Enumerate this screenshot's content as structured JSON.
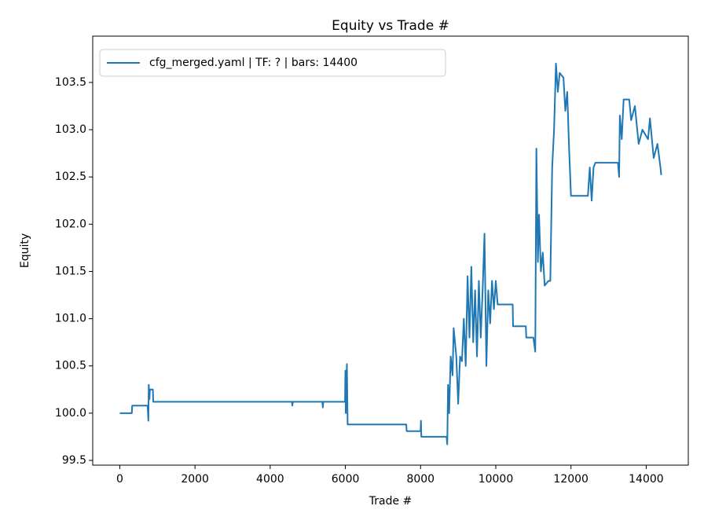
{
  "chart_data": {
    "type": "line",
    "title": "Equity vs Trade #",
    "xlabel": "Trade #",
    "ylabel": "Equity",
    "x": [
      0,
      320,
      330,
      740,
      760,
      770,
      790,
      800,
      880,
      890,
      4580,
      4590,
      4600,
      5390,
      5400,
      5410,
      5990,
      6000,
      6010,
      6040,
      6060,
      7620,
      7630,
      8000,
      8010,
      8020,
      8690,
      8710,
      8730,
      8760,
      8800,
      8850,
      8880,
      8950,
      9000,
      9050,
      9100,
      9150,
      9200,
      9250,
      9300,
      9350,
      9400,
      9450,
      9500,
      9550,
      9600,
      9650,
      9700,
      9750,
      9800,
      9850,
      9900,
      9950,
      10000,
      10050,
      10450,
      10460,
      10800,
      10810,
      11000,
      11050,
      11080,
      11120,
      11150,
      11200,
      11250,
      11300,
      11400,
      11450,
      11500,
      11550,
      11600,
      11650,
      11700,
      11800,
      11850,
      11900,
      11950,
      12000,
      12450,
      12500,
      12550,
      12600,
      12650,
      13250,
      13280,
      13300,
      13350,
      13400,
      13550,
      13600,
      13700,
      13800,
      13900,
      14050,
      14100,
      14200,
      14300,
      14380,
      14400
    ],
    "series": [
      {
        "name": "cfg_merged.yaml | TF: ? | bars: 14400",
        "color": "#1f77b4",
        "values": [
          100.0,
          100.0,
          100.08,
          100.08,
          99.92,
          100.3,
          100.15,
          100.25,
          100.25,
          100.12,
          100.12,
          100.08,
          100.12,
          100.12,
          100.06,
          100.12,
          100.12,
          100.45,
          100.0,
          100.52,
          99.88,
          99.88,
          99.81,
          99.81,
          99.92,
          99.75,
          99.75,
          99.67,
          100.3,
          100.0,
          100.6,
          100.4,
          100.9,
          100.6,
          100.1,
          100.6,
          100.55,
          101.0,
          100.5,
          101.45,
          100.8,
          101.55,
          100.75,
          101.3,
          100.6,
          101.4,
          100.8,
          101.3,
          101.9,
          100.5,
          101.3,
          100.95,
          101.4,
          101.1,
          101.4,
          101.15,
          101.15,
          100.92,
          100.92,
          100.8,
          100.8,
          100.65,
          102.8,
          101.6,
          102.1,
          101.5,
          101.7,
          101.35,
          101.4,
          101.4,
          102.6,
          103.0,
          103.7,
          103.4,
          103.6,
          103.55,
          103.2,
          103.4,
          102.8,
          102.3,
          102.3,
          102.6,
          102.25,
          102.6,
          102.65,
          102.65,
          102.5,
          103.15,
          102.9,
          103.32,
          103.32,
          103.1,
          103.25,
          102.85,
          103.0,
          102.9,
          103.12,
          102.7,
          102.85,
          102.6,
          102.52
        ]
      }
    ],
    "xlim": [
      -720,
      15120
    ],
    "ylim": [
      99.45,
      103.99
    ],
    "xticks": [
      0,
      2000,
      4000,
      6000,
      8000,
      10000,
      12000,
      14000
    ],
    "yticks": [
      99.5,
      {
        "value": 100,
        "label": "100.0"
      },
      100.5,
      {
        "value": 101,
        "label": "101.0"
      },
      101.5,
      {
        "value": 102,
        "label": "102.0"
      },
      102.5,
      {
        "value": 103,
        "label": "103.0"
      },
      103.5
    ],
    "legend": "upper left",
    "grid": false
  }
}
